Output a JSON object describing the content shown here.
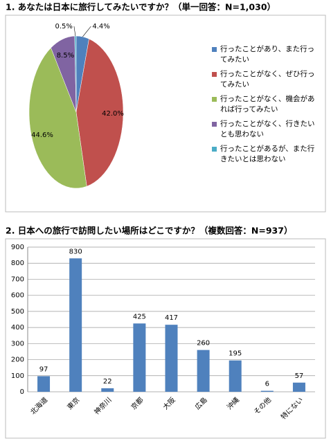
{
  "chart_data": [
    {
      "type": "pie",
      "title": "1. あなたは日本に旅行してみたいですか？（単一回答：N=1,030）",
      "categories": [
        "行ったことがあり、また行ってみたい",
        "行ったことがなく、ぜひ行ってみたい",
        "行ったことがなく、機会があれば行ってみたい",
        "行ったことがなく、行きたいとも思わない",
        "行ったことがあるが、また行きたいとは思わない"
      ],
      "values": [
        4.4,
        42.0,
        44.6,
        8.5,
        0.5
      ],
      "value_labels": [
        "4.4%",
        "42.0%",
        "44.6%",
        "8.5%",
        "0.5%"
      ],
      "colors": [
        "#4f81bd",
        "#c0504d",
        "#9bbb59",
        "#8064a2",
        "#4bacc6"
      ],
      "legend": "right"
    },
    {
      "type": "bar",
      "title": "2. 日本への旅行で訪問したい場所はどこですか？（複数回答：N=937）",
      "categories": [
        "北海道",
        "東京",
        "神奈川",
        "京都",
        "大阪",
        "広島",
        "沖縄",
        "その他",
        "特にない"
      ],
      "values": [
        97,
        830,
        22,
        425,
        417,
        260,
        195,
        6,
        57
      ],
      "color": "#4f81bd",
      "ylim": [
        0,
        900
      ],
      "yticks": [
        0,
        100,
        200,
        300,
        400,
        500,
        600,
        700,
        800,
        900
      ],
      "grid": true
    }
  ]
}
